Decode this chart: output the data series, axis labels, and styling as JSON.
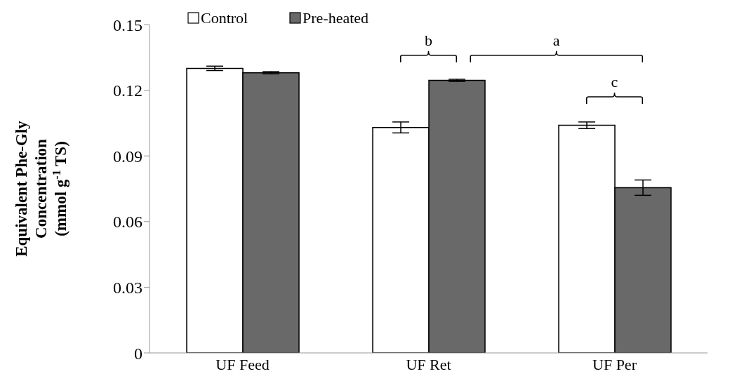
{
  "chart_data": {
    "type": "bar",
    "categories": [
      "UF Feed",
      "UF Ret",
      "UF Per"
    ],
    "series": [
      {
        "name": "Control",
        "color": "#ffffff",
        "values": [
          0.13,
          0.103,
          0.104
        ],
        "errors": [
          0.001,
          0.0025,
          0.0015
        ]
      },
      {
        "name": "Pre-heated",
        "color": "#696969",
        "values": [
          0.128,
          0.1245,
          0.0755
        ],
        "errors": [
          0.0005,
          0.0005,
          0.0035
        ]
      }
    ],
    "ylabel": "Equivalent Phe-Gly Concentration (mmol g$^{-1}$ TS)",
    "ylim": [
      0,
      0.15
    ],
    "yticks": [
      0,
      0.03,
      0.06,
      0.09,
      0.12,
      0.15
    ],
    "grid": false,
    "legend": "top",
    "annotations": [
      "b",
      "a",
      "c"
    ]
  }
}
